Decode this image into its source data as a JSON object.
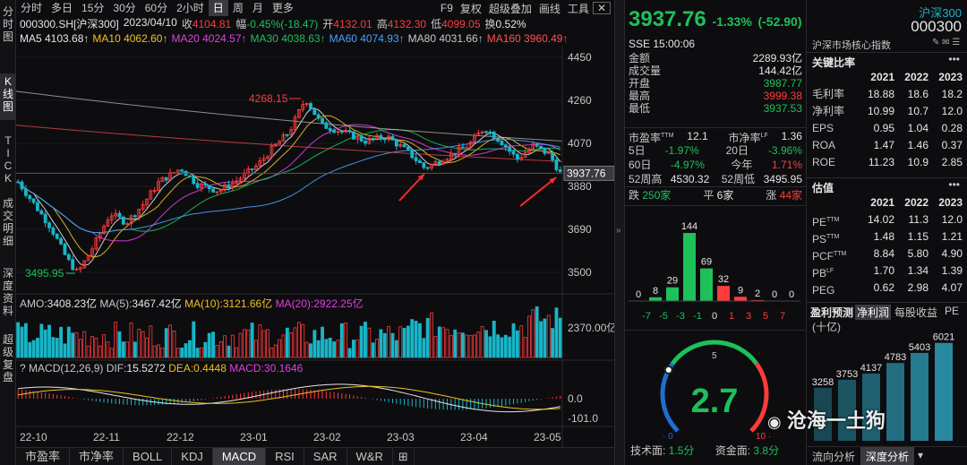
{
  "left_bar": [
    "分时图",
    "K线图",
    "TICK",
    "成交明细",
    "深度资料",
    "超级复盘"
  ],
  "period_tabs": [
    "分时",
    "多日",
    "15分",
    "30分",
    "60分",
    "2小时",
    "日",
    "周",
    "月",
    "更多"
  ],
  "active_period": "日",
  "tool_tabs": [
    "F9",
    "复权",
    "超级叠加",
    "画线",
    "工具"
  ],
  "info": {
    "code": "000300.SH[沪深300]",
    "date": "2023/04/10",
    "close_label": "收",
    "close": "4104.81",
    "amp_label": "幅",
    "amp": "-0.45%(-18.47)",
    "open_label": "开",
    "open": "4132.01",
    "high_label": "高",
    "high": "4132.30",
    "low_label": "低",
    "low": "4099.05",
    "turn_label": "换",
    "turn": "0.52%"
  },
  "ma": [
    {
      "label": "MA5",
      "value": "4103.68↑",
      "color": "#e6e6e6"
    },
    {
      "label": "MA10",
      "value": "4062.60↑",
      "color": "#f0c020"
    },
    {
      "label": "MA20",
      "value": "4024.57↑",
      "color": "#e040e0"
    },
    {
      "label": "MA30",
      "value": "4038.63↑",
      "color": "#1ec05a"
    },
    {
      "label": "MA60",
      "value": "4074.93↑",
      "color": "#4aa0ff"
    },
    {
      "label": "MA80",
      "value": "4031.66↑",
      "color": "#c8c8c8"
    },
    {
      "label": "MA160",
      "value": "3960.49↑",
      "color": "#ff5050"
    }
  ],
  "price_axis": [
    "4450",
    "4260",
    "4070",
    "3880",
    "3690",
    "3500"
  ],
  "price_current": "3937.76",
  "annotation_high": "4268.15",
  "annotation_low": "3495.95",
  "volume": {
    "amo_label": "AMO:",
    "amo": "3408.23亿",
    "ma5_label": "MA(5):",
    "ma5": "3467.42亿",
    "ma10_label": "MA(10):",
    "ma10": "3121.66亿",
    "ma20_label": "MA(20):",
    "ma20": "2922.25亿",
    "axis": "2370.00亿"
  },
  "macd": {
    "label": "MACD(12,26,9)",
    "dif_label": "DIF:",
    "dif": "15.5272",
    "dea_label": "DEA:",
    "dea": "0.4448",
    "macd_label": "MACD:",
    "macd": "30.1646",
    "axis_zero": "0.0",
    "axis_low": "-101.0"
  },
  "x_axis": [
    "22-10",
    "22-11",
    "22-12",
    "23-01",
    "23-02",
    "23-03",
    "23-04",
    "23-05"
  ],
  "bottom_tabs": [
    "市盈率",
    "市净率",
    "BOLL",
    "KDJ",
    "MACD",
    "RSI",
    "SAR",
    "W&R"
  ],
  "active_bottom": "MACD",
  "quote": {
    "price": "3937.76",
    "chg_pct": "-1.33%",
    "chg": "(-52.90)",
    "name": "沪深300",
    "exchange": "SSE",
    "time": "15:00:06",
    "subtitle": "沪深市场核心指数",
    "rows1": [
      {
        "label": "金额",
        "value": "2289.93亿",
        "cls": "white"
      },
      {
        "label": "成交量",
        "value": "144.42亿",
        "cls": "white"
      },
      {
        "label": "开盘",
        "value": "3987.77",
        "cls": "green"
      },
      {
        "label": "最高",
        "value": "3999.38",
        "cls": "red"
      },
      {
        "label": "最低",
        "value": "3937.53",
        "cls": "green"
      }
    ],
    "pe_label": "市盈率",
    "pe_sup": "TTM",
    "pe": "12.1",
    "pb_label": "市净率",
    "pb_sup": "LF",
    "pb": "1.36",
    "d5_label": "5日",
    "d5": "-1.97%",
    "d20_label": "20日",
    "d20": "-3.96%",
    "d60_label": "60日",
    "d60": "-4.97%",
    "ytd_label": "今年",
    "ytd": "1.71%",
    "h52_label": "52周高",
    "h52": "4530.32",
    "l52_label": "52周低",
    "l52": "3495.95",
    "down_label": "跌",
    "down": "250家",
    "flat_label": "平",
    "flat": "6家",
    "up_label": "涨",
    "up": "44家"
  },
  "distribution": {
    "bins": [
      "-7",
      "-5",
      "-3",
      "-1",
      "0",
      "1",
      "3",
      "5",
      "7"
    ],
    "values": [
      0,
      8,
      29,
      144,
      69,
      32,
      9,
      2,
      0,
      0
    ],
    "bar_labels": [
      "0",
      "8",
      "29",
      "144",
      "69",
      "32",
      "9",
      "2",
      "0",
      "0"
    ]
  },
  "gauge": {
    "value": 2.7,
    "value_label": "2.7",
    "min": "0",
    "mid": "5",
    "max": "10",
    "tech_label": "技术面:",
    "tech": "1.5分",
    "fund_label": "资金面:",
    "fund": "3.8分"
  },
  "fundamentals": {
    "title1": "关键比率",
    "name": "沪深300",
    "code": "000300",
    "years": [
      "2021",
      "2022",
      "2023"
    ],
    "ratios": [
      {
        "label": "毛利率",
        "v": [
          "18.88",
          "18.6",
          "18.2"
        ]
      },
      {
        "label": "净利率",
        "v": [
          "10.99",
          "10.7",
          "12.0"
        ]
      },
      {
        "label": "EPS",
        "v": [
          "0.95",
          "1.04",
          "0.28"
        ]
      },
      {
        "label": "ROA",
        "v": [
          "1.47",
          "1.46",
          "0.37"
        ]
      },
      {
        "label": "ROE",
        "v": [
          "11.23",
          "10.9",
          "2.85"
        ]
      }
    ],
    "title2": "估值",
    "valuation": [
      {
        "label": "PE",
        "sup": "TTM",
        "v": [
          "14.02",
          "11.3",
          "12.0"
        ]
      },
      {
        "label": "PS",
        "sup": "TTM",
        "v": [
          "1.48",
          "1.15",
          "1.21"
        ]
      },
      {
        "label": "PCF",
        "sup": "TTM",
        "v": [
          "8.84",
          "5.80",
          "4.90"
        ]
      },
      {
        "label": "PB",
        "sup": "LF",
        "v": [
          "1.70",
          "1.34",
          "1.39"
        ]
      },
      {
        "label": "PEG",
        "sup": "",
        "v": [
          "0.62",
          "2.98",
          "4.07"
        ]
      }
    ],
    "tabs": [
      "盈利预测",
      "净利润",
      "每股收益",
      "PE"
    ],
    "unit": "(十亿)",
    "forecast": [
      3258,
      3753,
      4137,
      4783,
      5403,
      6021
    ],
    "forecast_labels": [
      "3258",
      "3753",
      "4137",
      "4783",
      "5403",
      "6021"
    ],
    "bottom_tabs": [
      "流向分析",
      "深度分析"
    ],
    "watermark": "沧海一土狗"
  },
  "colors": {
    "up": "#ff3b3b",
    "down": "#1ec05a",
    "accent": "#19b5c8",
    "bg": "#0d0d10"
  }
}
